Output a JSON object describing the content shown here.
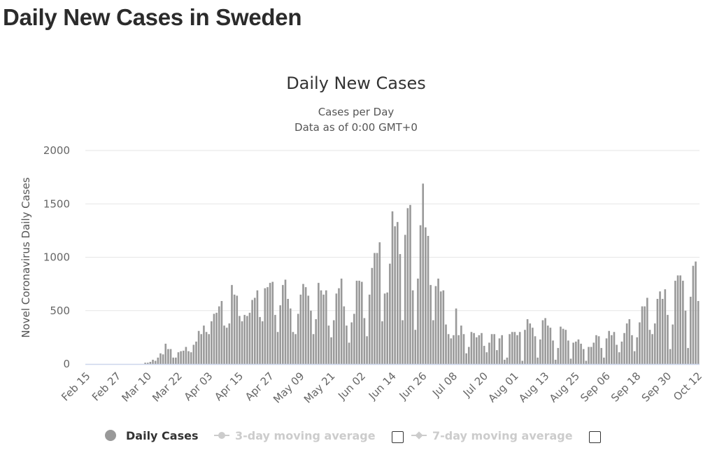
{
  "page": {
    "heading": "Daily New Cases in Sweden"
  },
  "chart_data": {
    "type": "bar",
    "title": "Daily New Cases",
    "subtitle_lines": [
      "Cases per Day",
      "Data as of 0:00 GMT+0"
    ],
    "ylabel": "Novel Coronavirus Daily Cases",
    "xlabel": "",
    "ylim": [
      0,
      2000
    ],
    "yticks": [
      0,
      500,
      1000,
      1500,
      2000
    ],
    "grid": true,
    "bar_color": "#999999",
    "start_date": "Feb 15",
    "x_tick_labels": [
      "Feb 15",
      "Feb 27",
      "Mar 10",
      "Mar 22",
      "Apr 03",
      "Apr 15",
      "Apr 27",
      "May 09",
      "May 21",
      "Jun 02",
      "Jun 14",
      "Jun 26",
      "Jul 08",
      "Jul 20",
      "Aug 01",
      "Aug 13",
      "Aug 25",
      "Sep 06",
      "Sep 18",
      "Sep 30",
      "Oct 12"
    ],
    "x_tick_interval_days": 12,
    "series": [
      {
        "name": "Daily Cases",
        "values": [
          0,
          0,
          0,
          0,
          0,
          0,
          0,
          0,
          0,
          0,
          0,
          0,
          0,
          0,
          0,
          0,
          0,
          0,
          0,
          0,
          0,
          0,
          0,
          12,
          12,
          20,
          40,
          30,
          60,
          100,
          90,
          190,
          140,
          140,
          60,
          60,
          110,
          120,
          125,
          160,
          120,
          110,
          180,
          210,
          310,
          280,
          360,
          300,
          280,
          400,
          470,
          480,
          540,
          590,
          360,
          340,
          380,
          740,
          650,
          640,
          450,
          400,
          460,
          450,
          480,
          600,
          620,
          690,
          440,
          400,
          710,
          720,
          760,
          770,
          460,
          300,
          550,
          740,
          790,
          610,
          520,
          300,
          280,
          470,
          650,
          750,
          720,
          640,
          500,
          280,
          420,
          760,
          690,
          650,
          690,
          360,
          250,
          410,
          660,
          710,
          800,
          540,
          360,
          200,
          390,
          470,
          780,
          780,
          770,
          430,
          260,
          650,
          900,
          1040,
          1040,
          1140,
          400,
          660,
          670,
          940,
          1430,
          1290,
          1330,
          1030,
          410,
          1210,
          1460,
          1490,
          690,
          320,
          800,
          1300,
          1690,
          1280,
          1200,
          740,
          410,
          730,
          800,
          680,
          690,
          370,
          280,
          240,
          270,
          520,
          270,
          360,
          280,
          100,
          160,
          300,
          290,
          250,
          270,
          290,
          170,
          110,
          200,
          280,
          280,
          130,
          240,
          270,
          40,
          60,
          280,
          300,
          300,
          270,
          300,
          30,
          320,
          420,
          380,
          340,
          260,
          60,
          230,
          410,
          430,
          360,
          340,
          220,
          40,
          150,
          350,
          330,
          320,
          220,
          50,
          200,
          210,
          230,
          190,
          140,
          30,
          160,
          160,
          200,
          270,
          260,
          150,
          60,
          240,
          310,
          270,
          300,
          180,
          110,
          210,
          290,
          380,
          420,
          270,
          120,
          250,
          390,
          540,
          540,
          620,
          320,
          280,
          380,
          610,
          680,
          610,
          700,
          460,
          140,
          370,
          780,
          830,
          830,
          780,
          500,
          150,
          630,
          920,
          960,
          590
        ]
      }
    ],
    "legend": [
      {
        "label": "Daily Cases",
        "active": true,
        "symbol": "circle"
      },
      {
        "label": "3-day moving average",
        "active": false,
        "symbol": "line-circle"
      },
      {
        "label": "7-day moving average",
        "active": false,
        "symbol": "line-diamond"
      }
    ]
  }
}
